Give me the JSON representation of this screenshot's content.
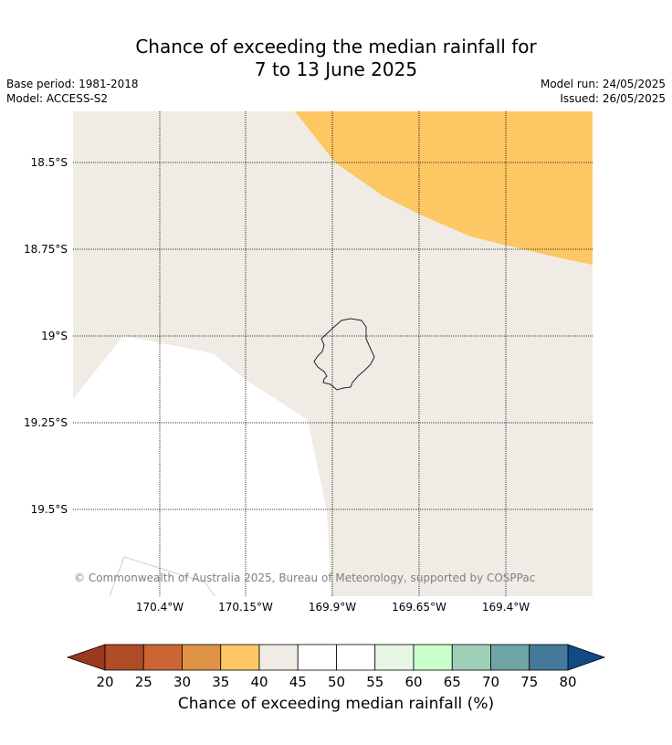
{
  "title": {
    "line1": "Chance of exceeding the median rainfall for",
    "line2": "7 to 13 June 2025"
  },
  "meta": {
    "base_period": "Base period: 1981-2018",
    "model": "Model: ACCESS-S2",
    "model_run": "Model run: 24/05/2025",
    "issued": "Issued: 26/05/2025"
  },
  "map": {
    "latitude_labels": [
      "18.5°S",
      "18.75°S",
      "19°S",
      "19.25°S",
      "19.5°S"
    ],
    "longitude_labels": [
      "170.4°W",
      "170.15°W",
      "169.9°W",
      "169.65°W",
      "169.4°W"
    ],
    "copyright": "© Commonwealth of Australia 2025, Bureau of Meteorology, supported by COSPPac",
    "region_colors": {
      "band_35_40": "#fdc864",
      "band_40_45": "#f0ebe5",
      "band_45_55": "#ffffff"
    }
  },
  "colorbar": {
    "label": "Chance of exceeding median rainfall (%)",
    "ticks": [
      "20",
      "25",
      "30",
      "35",
      "40",
      "45",
      "50",
      "55",
      "60",
      "65",
      "70",
      "75",
      "80"
    ],
    "under_color": "#9a3822",
    "over_color": "#124a86",
    "bin_colors": [
      "#b04b27",
      "#cc6533",
      "#e09347",
      "#fdc864",
      "#f0ebe5",
      "#ffffff",
      "#ffffff",
      "#e7f5e4",
      "#c9ffcb",
      "#9dd0b7",
      "#6fa5a6",
      "#44799a"
    ]
  }
}
